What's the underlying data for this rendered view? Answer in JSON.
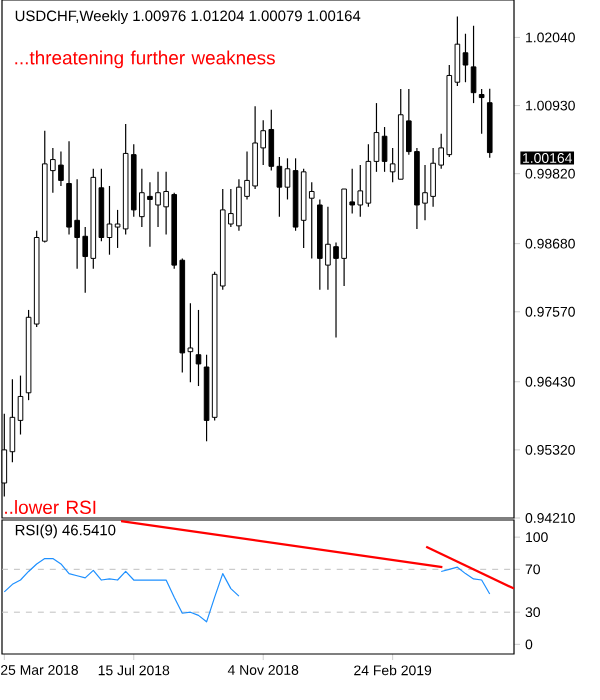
{
  "chart_data": [
    {
      "type": "candlestick",
      "title": "USDCHF,Weekly 1.00976 1.01204 1.00079 1.00164",
      "annotations": [
        "...threatening further weakness",
        "..lower RSI",
        "1.00164"
      ],
      "x": [
        "2018-03-25",
        "2018-04-01",
        "2018-04-08",
        "2018-04-15",
        "2018-04-22",
        "2018-04-29",
        "2018-05-06",
        "2018-05-13",
        "2018-05-20",
        "2018-05-27",
        "2018-06-03",
        "2018-06-10",
        "2018-06-17",
        "2018-06-24",
        "2018-07-01",
        "2018-07-08",
        "2018-07-15",
        "2018-07-22",
        "2018-07-29",
        "2018-08-05",
        "2018-08-12",
        "2018-08-19",
        "2018-08-26",
        "2018-09-02",
        "2018-09-09",
        "2018-09-16",
        "2018-09-23",
        "2018-09-30",
        "2018-10-07",
        "2018-10-14",
        "2018-10-21",
        "2018-10-28",
        "2018-11-04",
        "2018-11-11",
        "2018-11-18",
        "2018-11-25",
        "2018-12-02",
        "2018-12-09",
        "2018-12-16",
        "2018-12-23",
        "2018-12-30",
        "2019-01-06",
        "2019-01-13",
        "2019-01-20",
        "2019-01-27",
        "2019-02-03",
        "2019-02-10",
        "2019-02-17",
        "2019-02-24",
        "2019-03-03",
        "2019-03-10",
        "2019-03-17",
        "2019-03-24",
        "2019-03-31",
        "2019-04-07",
        "2019-04-14",
        "2019-04-21",
        "2019-04-28",
        "2019-05-05",
        "2019-05-12",
        "2019-05-19"
      ],
      "ohlc": [
        [
          0.9478,
          0.9591,
          0.9456,
          0.9532
        ],
        [
          0.9529,
          0.9647,
          0.9512,
          0.9585
        ],
        [
          0.958,
          0.9653,
          0.9557,
          0.9619
        ],
        [
          0.9625,
          0.976,
          0.9613,
          0.9748
        ],
        [
          0.9737,
          0.9889,
          0.9732,
          0.9878
        ],
        [
          0.9872,
          1.0052,
          0.987,
          0.9998
        ],
        [
          0.9987,
          1.0024,
          0.9951,
          1.0005
        ],
        [
          0.9996,
          1.0018,
          0.9962,
          0.9971
        ],
        [
          0.9966,
          1.0035,
          0.9883,
          0.9895
        ],
        [
          0.9906,
          0.9973,
          0.9827,
          0.9878
        ],
        [
          0.988,
          0.9895,
          0.9788,
          0.9847
        ],
        [
          0.9844,
          0.999,
          0.9827,
          0.9976
        ],
        [
          0.9959,
          0.999,
          0.9872,
          0.9878
        ],
        [
          0.9878,
          0.9962,
          0.985,
          0.99
        ],
        [
          0.9895,
          0.9923,
          0.9861,
          0.99
        ],
        [
          0.9892,
          1.0063,
          0.9883,
          1.0015
        ],
        [
          1.0013,
          1.003,
          0.9912,
          0.9923
        ],
        [
          0.9912,
          0.999,
          0.9895,
          0.9951
        ],
        [
          0.9945,
          0.9968,
          0.9863,
          0.994
        ],
        [
          0.9931,
          0.9985,
          0.9895,
          0.9951
        ],
        [
          0.9928,
          0.9985,
          0.9883,
          0.9953
        ],
        [
          0.9948,
          0.9951,
          0.9827,
          0.9833
        ],
        [
          0.9841,
          0.9844,
          0.9658,
          0.969
        ],
        [
          0.9692,
          0.9771,
          0.9642,
          0.9698
        ],
        [
          0.9687,
          0.976,
          0.9636,
          0.9672
        ],
        [
          0.9667,
          0.9687,
          0.9546,
          0.958
        ],
        [
          0.9585,
          0.9822,
          0.958,
          0.9818
        ],
        [
          0.9799,
          0.9957,
          0.9793,
          0.9923
        ],
        [
          0.99,
          0.9957,
          0.9895,
          0.9917
        ],
        [
          0.9897,
          0.9973,
          0.9889,
          0.996
        ],
        [
          0.9945,
          1.0018,
          0.994,
          0.9971
        ],
        [
          0.9962,
          1.0092,
          0.9957,
          1.0032
        ],
        [
          1.0024,
          1.0069,
          0.9996,
          1.0052
        ],
        [
          1.0054,
          1.0086,
          0.9987,
          0.9994
        ],
        [
          0.9994,
          1.0009,
          0.9912,
          0.996
        ],
        [
          0.996,
          1.0007,
          0.994,
          0.999
        ],
        [
          0.9987,
          1.0007,
          0.9889,
          0.9895
        ],
        [
          0.9906,
          0.999,
          0.9861,
          0.9985
        ],
        [
          0.9942,
          0.9968,
          0.9844,
          0.9953
        ],
        [
          0.9931,
          0.994,
          0.9793,
          0.9844
        ],
        [
          0.9833,
          0.9928,
          0.9793,
          0.9867
        ],
        [
          0.9863,
          0.987,
          0.9715,
          0.9844
        ],
        [
          0.9844,
          0.9957,
          0.9799,
          0.9957
        ],
        [
          0.9936,
          0.999,
          0.9917,
          0.9931
        ],
        [
          0.9931,
          0.9996,
          0.9912,
          0.9954
        ],
        [
          0.9934,
          1.003,
          0.9928,
          1.0002
        ],
        [
          1.0002,
          1.0097,
          0.9985,
          1.0049
        ],
        [
          1.0043,
          1.0058,
          0.9985,
          1.0002
        ],
        [
          0.9985,
          1.0024,
          0.9968,
          0.9998
        ],
        [
          0.9973,
          1.012,
          0.9973,
          1.0078
        ],
        [
          1.0068,
          1.012,
          1.0013,
          1.0018
        ],
        [
          1.0018,
          1.0024,
          0.9892,
          0.9931
        ],
        [
          0.9934,
          0.9996,
          0.9906,
          0.9951
        ],
        [
          0.9945,
          1.0024,
          0.9928,
          0.9999
        ],
        [
          0.9996,
          1.0047,
          0.999,
          1.0024
        ],
        [
          1.0013,
          1.0159,
          1.0009,
          1.0142
        ],
        [
          1.0131,
          1.0238,
          1.0125,
          1.0193
        ],
        [
          1.0179,
          1.021,
          1.0131,
          1.0159
        ],
        [
          1.0156,
          1.0223,
          1.0097,
          1.0114
        ],
        [
          1.0111,
          1.012,
          1.0047,
          1.0106
        ],
        [
          1.00976,
          1.01204,
          1.00079,
          1.00164
        ]
      ],
      "xlim": [
        "2018-03-23",
        "2019-06-09"
      ],
      "ylim": [
        0.9421,
        1.0265
      ],
      "yticks": [
        {
          "value": 1.0204,
          "label": "1.02040"
        },
        {
          "value": 1.0093,
          "label": "1.00930"
        },
        {
          "value": 0.9982,
          "label": "0.99820"
        },
        {
          "value": 0.9868,
          "label": "0.98680"
        },
        {
          "value": 0.9757,
          "label": "0.97570"
        },
        {
          "value": 0.9643,
          "label": "0.96430"
        },
        {
          "value": 0.9532,
          "label": "0.95320"
        },
        {
          "value": 0.9421,
          "label": "0.94210"
        }
      ],
      "tick_labels": "y"
    },
    {
      "type": "line",
      "title": "RSI(9) 46.5410",
      "x": [
        "2018-03-25",
        "2018-04-01",
        "2018-04-08",
        "2018-04-15",
        "2018-04-22",
        "2018-04-29",
        "2018-05-06",
        "2018-05-13",
        "2018-05-20",
        "2018-05-27",
        "2018-06-03",
        "2018-06-10",
        "2018-06-17",
        "2018-06-24",
        "2018-07-01",
        "2018-07-08",
        "2018-07-15",
        "2018-07-22",
        "2018-07-29",
        "2018-08-05",
        "2018-08-12",
        "2018-08-19",
        "2018-08-26",
        "2018-09-02",
        "2018-09-09",
        "2018-09-16",
        "2018-09-23",
        "2018-09-30",
        "2018-10-07",
        "2018-10-14",
        "2018-10-21",
        "2018-10-28",
        "2018-11-04",
        "2018-11-11",
        "2018-11-18",
        "2018-11-25",
        "2018-12-02",
        "2018-12-09",
        "2018-12-16",
        "2018-12-23",
        "2018-12-30",
        "2019-01-06",
        "2019-01-13",
        "2019-01-20",
        "2019-01-27",
        "2019-02-03",
        "2019-02-10",
        "2019-02-17",
        "2019-02-24",
        "2019-03-03",
        "2019-03-10",
        "2019-03-17",
        "2019-03-24",
        "2019-03-31",
        "2019-04-07",
        "2019-04-14",
        "2019-04-21",
        "2019-04-28",
        "2019-05-05",
        "2019-05-12",
        "2019-05-19"
      ],
      "series": [
        {
          "color": "#1e90ff",
          "values": [
            49,
            56,
            60,
            68,
            75,
            80,
            80,
            75,
            66,
            64,
            62,
            69,
            60,
            61,
            60,
            68,
            60,
            60,
            60,
            60,
            60,
            44,
            29,
            30,
            27,
            21,
            44,
            66,
            52,
            45,
            null,
            null,
            null,
            null,
            null,
            null,
            null,
            null,
            null,
            null,
            null,
            null,
            null,
            null,
            null,
            null,
            null,
            null,
            null,
            null,
            null,
            null,
            null,
            null,
            68,
            70,
            72,
            66,
            61,
            60,
            47
          ]
        },
        {
          "type": "line",
          "color": "#ff0000",
          "x": [
            "2018-07-04",
            "2019-04-08"
          ],
          "values": [
            115,
            72
          ]
        },
        {
          "type": "line",
          "color": "#ff0000",
          "x": [
            "2019-03-25",
            "2019-06-09"
          ],
          "values": [
            91,
            52
          ]
        }
      ],
      "ref_lines": [
        {
          "axis": "y",
          "value": 70,
          "color": "#c0c0c0",
          "line_style": "dashed"
        },
        {
          "axis": "y",
          "value": 30,
          "color": "#c0c0c0",
          "line_style": "dashed"
        }
      ],
      "xlim": [
        "2018-03-23",
        "2019-06-09"
      ],
      "ylim": [
        -9,
        116
      ],
      "xticks": [
        {
          "value": "2018-03-25",
          "label": "25 Mar 2018"
        },
        {
          "value": "2018-07-15",
          "label": "15 Jul 2018"
        },
        {
          "value": "2018-11-04",
          "label": "4 Nov 2018"
        },
        {
          "value": "2019-02-24",
          "label": "24 Feb 2019"
        }
      ],
      "yticks": [
        100,
        70,
        30,
        0
      ]
    }
  ]
}
